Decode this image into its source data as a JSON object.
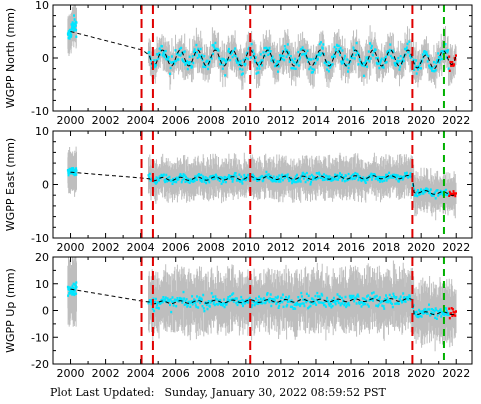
{
  "chart_data": [
    {
      "type": "scatter",
      "ylabel": "WGPP North (mm)",
      "ylim": [
        -10,
        10
      ],
      "yticks": [
        -10,
        0,
        10
      ],
      "xlim": [
        1999.0,
        2022.9
      ],
      "xticks": [
        2000,
        2002,
        2004,
        2006,
        2008,
        2010,
        2012,
        2014,
        2016,
        2018,
        2020,
        2022
      ],
      "model_line": [
        [
          2000.0,
          5.0
        ],
        [
          2004.1,
          1.5
        ],
        [
          2004.7,
          0.0
        ],
        [
          2010.3,
          0.0
        ],
        [
          2019.5,
          0.0
        ],
        [
          2020.2,
          -1.0
        ],
        [
          2022.0,
          0.5
        ]
      ],
      "seasonal_amplitude": 1.5,
      "data_noise": 2.2,
      "error_bar": 2.5,
      "offsets_red": [
        2004.05,
        2004.7,
        2010.25,
        2019.5
      ],
      "offsets_green": [
        2021.3
      ]
    },
    {
      "type": "scatter",
      "ylabel": "WGPP East (mm)",
      "ylim": [
        -10,
        10
      ],
      "yticks": [
        -10,
        0,
        10
      ],
      "xlim": [
        1999.0,
        2022.9
      ],
      "xticks": [
        2000,
        2002,
        2004,
        2006,
        2008,
        2010,
        2012,
        2014,
        2016,
        2018,
        2020,
        2022
      ],
      "model_line": [
        [
          2000.0,
          2.3
        ],
        [
          2004.1,
          1.2
        ],
        [
          2004.7,
          1.0
        ],
        [
          2010.3,
          1.2
        ],
        [
          2019.5,
          1.4
        ],
        [
          2019.6,
          -1.3
        ],
        [
          2022.0,
          -1.8
        ]
      ],
      "seasonal_amplitude": 0.3,
      "data_noise": 1.1,
      "error_bar": 3.0,
      "offsets_red": [
        2004.05,
        2004.7,
        2010.25,
        2019.5
      ],
      "offsets_green": [
        2021.3
      ]
    },
    {
      "type": "scatter",
      "ylabel": "WGPP Up (mm)",
      "ylim": [
        -20,
        20
      ],
      "yticks": [
        -20,
        -10,
        0,
        10,
        20
      ],
      "xlim": [
        1999.0,
        2022.9
      ],
      "xticks": [
        2000,
        2002,
        2004,
        2006,
        2008,
        2010,
        2012,
        2014,
        2016,
        2018,
        2020,
        2022
      ],
      "model_line": [
        [
          2000.0,
          8.0
        ],
        [
          2004.1,
          3.5
        ],
        [
          2004.7,
          3.0
        ],
        [
          2010.3,
          3.5
        ],
        [
          2019.5,
          4.0
        ],
        [
          2019.6,
          -1.0
        ],
        [
          2022.0,
          -1.0
        ]
      ],
      "seasonal_amplitude": 0.5,
      "data_noise": 3.5,
      "error_bar": 9.0,
      "offsets_red": [
        2004.05,
        2004.7,
        2010.25,
        2019.5
      ],
      "offsets_green": [
        2021.3
      ]
    }
  ],
  "footer": {
    "label": "Plot Last Updated:",
    "timestamp": "Sunday, January 30, 2022 08:59:52 PST"
  },
  "colors": {
    "data": "#00e5ff",
    "error_bars": "#b3b3b3",
    "recent_data": "#ff0000",
    "offset_red": "#e00000",
    "offset_green": "#00b000",
    "model_line": "#000000"
  }
}
